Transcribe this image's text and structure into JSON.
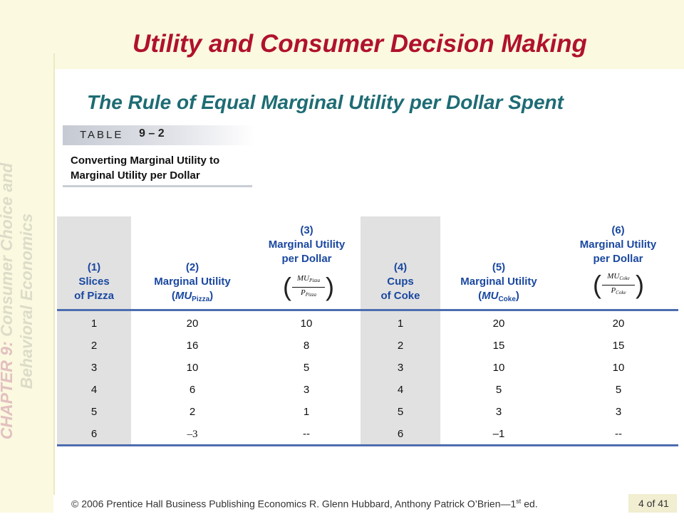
{
  "slide": {
    "title": "Utility and Consumer Decision Making",
    "subtitle": "The Rule of Equal Marginal Utility per Dollar Spent"
  },
  "sidebar": {
    "chapter": "CHAPTER 9:",
    "chapter_title_line1": "Consumer Choice and",
    "chapter_title_line2": "Behavioral Economics"
  },
  "table_label": {
    "word": "TABLE",
    "number": "9 – 2",
    "caption_line1": "Converting Marginal Utility to",
    "caption_line2": "Marginal Utility per Dollar"
  },
  "table": {
    "headers": {
      "c1": [
        "(1)",
        "Slices",
        "of Pizza"
      ],
      "c2": [
        "(2)",
        "Marginal Utility"
      ],
      "c2_mu": "MU",
      "c2_sub": "Pizza",
      "c3": [
        "(3)",
        "Marginal Utility",
        "per Dollar"
      ],
      "c3_frac": {
        "num": "MU",
        "num_sub": "Pizza",
        "den": "P",
        "den_sub": "Pizza"
      },
      "c4": [
        "(4)",
        "Cups",
        "of Coke"
      ],
      "c5": [
        "(5)",
        "Marginal Utility"
      ],
      "c5_mu": "MU",
      "c5_sub": "Coke",
      "c6": [
        "(6)",
        "Marginal Utility",
        "per Dollar"
      ],
      "c6_frac": {
        "num": "MU",
        "num_sub": "Coke",
        "den": "P",
        "den_sub": "Coke"
      }
    },
    "rows": [
      [
        "1",
        "20",
        "10",
        "1",
        "20",
        "20"
      ],
      [
        "2",
        "16",
        "8",
        "2",
        "15",
        "15"
      ],
      [
        "3",
        "10",
        "5",
        "3",
        "10",
        "10"
      ],
      [
        "4",
        "6",
        "3",
        "4",
        "5",
        "5"
      ],
      [
        "5",
        "2",
        "1",
        "5",
        "3",
        "3"
      ],
      [
        "6",
        "–3",
        "--",
        "6",
        "–1",
        "--"
      ]
    ]
  },
  "footer": {
    "text": "© 2006 Prentice Hall Business Publishing   Economics  R. Glenn Hubbard, Anthony Patrick O’Brien—1",
    "sup": "st",
    "ed": " ed.",
    "page": "4 of 41"
  }
}
